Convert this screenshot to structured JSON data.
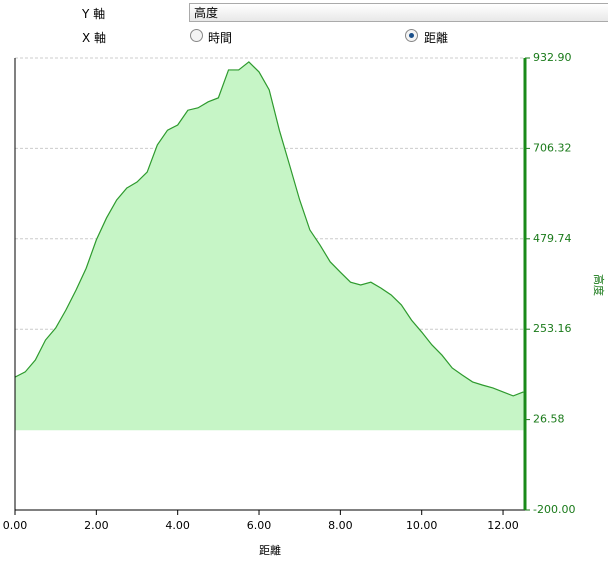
{
  "controls": {
    "y_axis": {
      "label": "Y 軸",
      "selected": "高度"
    },
    "x_axis": {
      "label": "X 軸",
      "options": [
        "時間",
        "距離"
      ]
    }
  },
  "chart_data": {
    "type": "area",
    "xlabel": "距離",
    "ylabel": "高度",
    "yaxis_position": "right",
    "color": "#2e9a2e",
    "fill": "#c6f5c6",
    "x": [
      0,
      0.25,
      0.5,
      0.75,
      1.0,
      1.25,
      1.5,
      1.75,
      2.0,
      2.25,
      2.5,
      2.75,
      3.0,
      3.25,
      3.5,
      3.75,
      4.0,
      4.25,
      4.5,
      4.75,
      5.0,
      5.25,
      5.5,
      5.75,
      6.0,
      6.25,
      6.5,
      6.75,
      7.0,
      7.25,
      7.5,
      7.75,
      8.0,
      8.25,
      8.5,
      8.75,
      9.0,
      9.25,
      9.5,
      9.75,
      10.0,
      10.25,
      10.5,
      10.75,
      11.0,
      11.25,
      11.5,
      11.75,
      12.0,
      12.25,
      12.5
    ],
    "values": [
      133,
      146,
      176,
      226,
      256,
      301,
      351,
      406,
      477,
      532,
      577,
      607,
      622,
      647,
      715,
      752,
      765,
      802,
      808,
      823,
      833,
      903,
      903,
      923,
      898,
      853,
      752,
      665,
      577,
      502,
      464,
      422,
      396,
      371,
      364,
      371,
      356,
      339,
      314,
      276,
      246,
      214,
      188,
      156,
      138,
      121,
      113,
      106,
      96,
      86,
      96
    ],
    "xlim": [
      0,
      12.54
    ],
    "xticks": [
      {
        "value": 0,
        "label": "0.00"
      },
      {
        "value": 2,
        "label": "2.00"
      },
      {
        "value": 4,
        "label": "4.00"
      },
      {
        "value": 6,
        "label": "6.00"
      },
      {
        "value": 8,
        "label": "8.00"
      },
      {
        "value": 10,
        "label": "10.00"
      },
      {
        "value": 12,
        "label": "12.00"
      }
    ],
    "ylim": [
      -200,
      932.9
    ],
    "yticks": [
      {
        "value": -200,
        "label": "-200.00"
      },
      26.58,
      253.16,
      479.74,
      706.32,
      {
        "value": 932.9,
        "label": "932.90"
      }
    ],
    "grid": true
  }
}
